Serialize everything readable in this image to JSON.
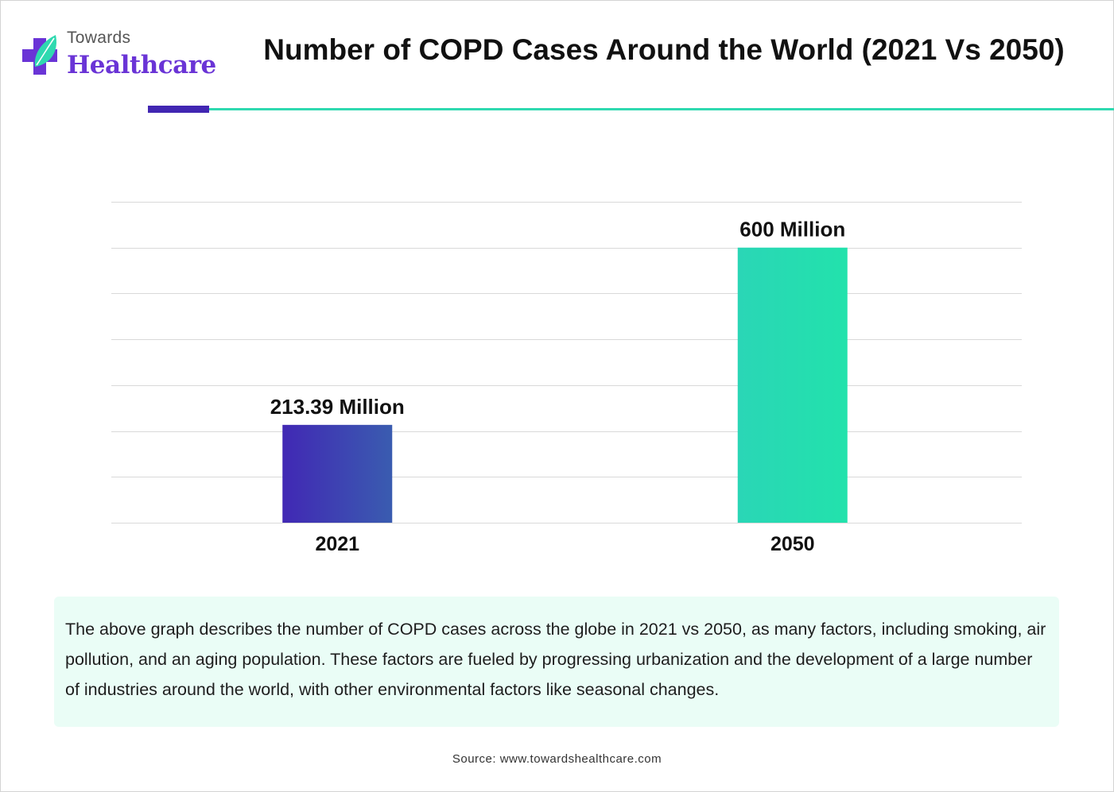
{
  "header": {
    "logo_top": "Towards",
    "logo_bottom": "Healthcare",
    "title": "Number of COPD Cases Around the World (2021 Vs 2050)"
  },
  "chart_data": {
    "type": "bar",
    "title": "Number of COPD Cases Around the World (2021 Vs 2050)",
    "categories": [
      "2021",
      "2050"
    ],
    "values": [
      213.39,
      600
    ],
    "unit": "Million",
    "data_labels": [
      "213.39 Million",
      "600 Million"
    ],
    "colors": [
      [
        "#4128b4",
        "#3a5cb0"
      ],
      [
        "#2ad6b6",
        "#22e2ac"
      ]
    ],
    "ylim": [
      0,
      700
    ],
    "gridline_step": 100,
    "xlabel": "",
    "ylabel": "",
    "grid": true
  },
  "description": "The above graph describes the number of COPD cases across the globe in 2021 vs 2050, as many factors, including smoking, air pollution, and an aging population. These factors are fueled by progressing urbanization and the development of a large number of industries around the world, with other environmental factors like seasonal changes.",
  "source": "Source: www.towardshealthcare.com",
  "colors": {
    "accent_purple": "#4126b2",
    "accent_green": "#2fd9b0",
    "logo_purple": "#6a34d6",
    "description_bg": "#eafdf6"
  }
}
